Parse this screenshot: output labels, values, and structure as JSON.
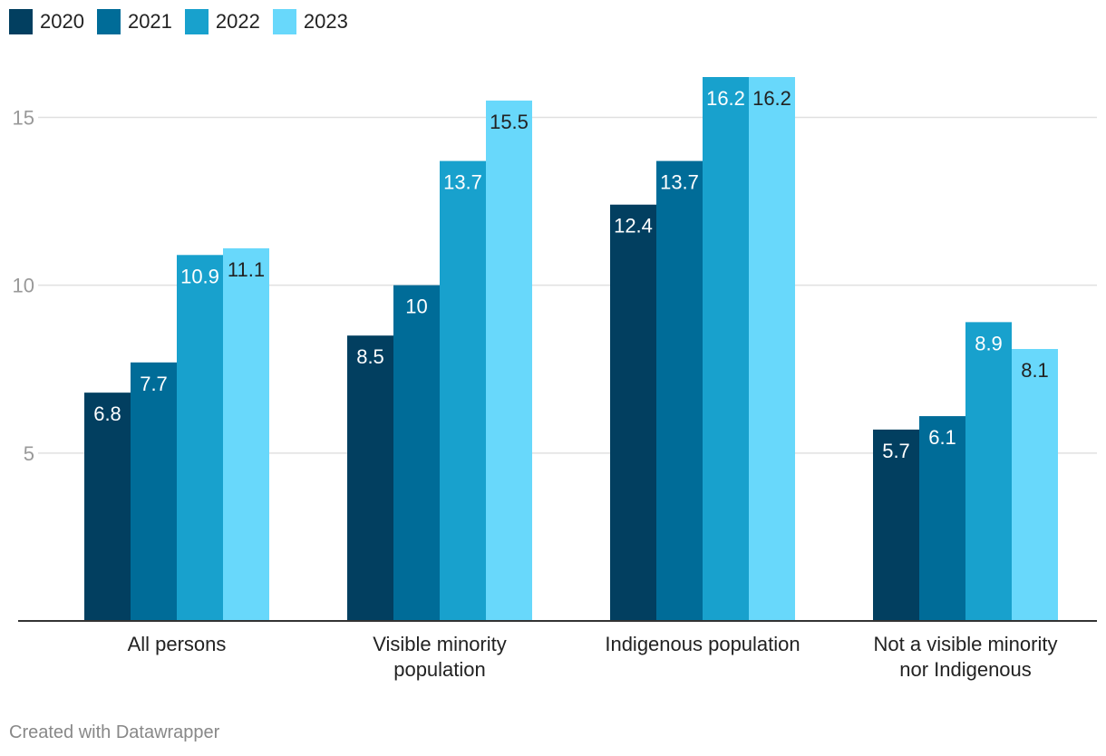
{
  "chart_data": {
    "type": "bar",
    "categories": [
      [
        "All persons"
      ],
      [
        "Visible minority",
        "population"
      ],
      [
        "Indigenous population"
      ],
      [
        "Not a visible minority",
        "nor Indigenous"
      ]
    ],
    "series": [
      {
        "name": "2020",
        "color": "#023f60",
        "values": [
          6.8,
          8.5,
          12.4,
          5.7
        ]
      },
      {
        "name": "2021",
        "color": "#006c98",
        "values": [
          7.7,
          10,
          13.7,
          6.1
        ]
      },
      {
        "name": "2022",
        "color": "#18a1cd",
        "values": [
          10.9,
          13.7,
          16.2,
          8.9
        ]
      },
      {
        "name": "2023",
        "color": "#68d8fb",
        "values": [
          11.1,
          15.5,
          16.2,
          8.1
        ]
      }
    ],
    "ylim": [
      0,
      16.2
    ],
    "yticks": [
      5,
      10,
      15
    ],
    "title": "",
    "xlabel": "",
    "ylabel": "",
    "legend_position": "top-left",
    "grid": true
  },
  "credit": "Created with Datawrapper"
}
